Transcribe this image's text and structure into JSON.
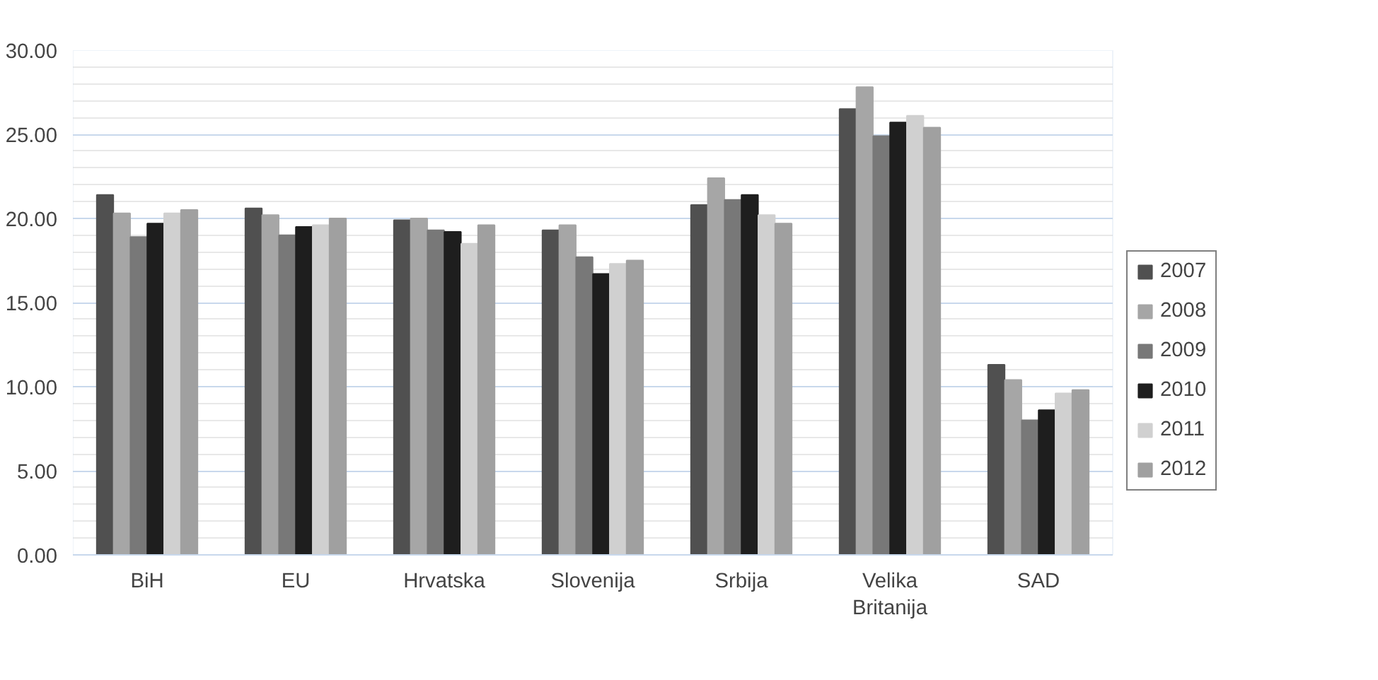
{
  "chart_data": {
    "type": "bar",
    "categories": [
      "BiH",
      "EU",
      "Hrvatska",
      "Slovenija",
      "Srbija",
      "Velika Britanija",
      "SAD"
    ],
    "series": [
      {
        "name": "2007",
        "color": "#505050",
        "values": [
          21.4,
          20.6,
          19.9,
          19.3,
          20.8,
          26.5,
          11.3
        ]
      },
      {
        "name": "2008",
        "color": "#a6a6a6",
        "values": [
          20.3,
          20.2,
          20.0,
          19.6,
          22.4,
          27.8,
          10.4
        ]
      },
      {
        "name": "2009",
        "color": "#787878",
        "values": [
          18.9,
          19.0,
          19.3,
          17.7,
          21.1,
          24.9,
          8.0
        ]
      },
      {
        "name": "2010",
        "color": "#1e1e1e",
        "values": [
          19.7,
          19.5,
          19.2,
          16.7,
          21.4,
          25.7,
          8.6
        ]
      },
      {
        "name": "2011",
        "color": "#d0d0d0",
        "values": [
          20.3,
          19.6,
          18.5,
          17.3,
          20.2,
          26.1,
          9.6
        ]
      },
      {
        "name": "2012",
        "color": "#a0a0a0",
        "values": [
          20.5,
          20.0,
          19.6,
          17.5,
          19.7,
          25.4,
          9.8
        ]
      }
    ],
    "ylim": [
      0,
      30
    ],
    "yticks": [
      {
        "value": 0,
        "label": "0.00"
      },
      {
        "value": 5,
        "label": "5.00"
      },
      {
        "value": 10,
        "label": "10.00"
      },
      {
        "value": 15,
        "label": "15.00"
      },
      {
        "value": 20,
        "label": "20.00"
      },
      {
        "value": 25,
        "label": "25.00"
      },
      {
        "value": 30,
        "label": "30.00"
      }
    ],
    "grid": "y",
    "legend": "right"
  }
}
